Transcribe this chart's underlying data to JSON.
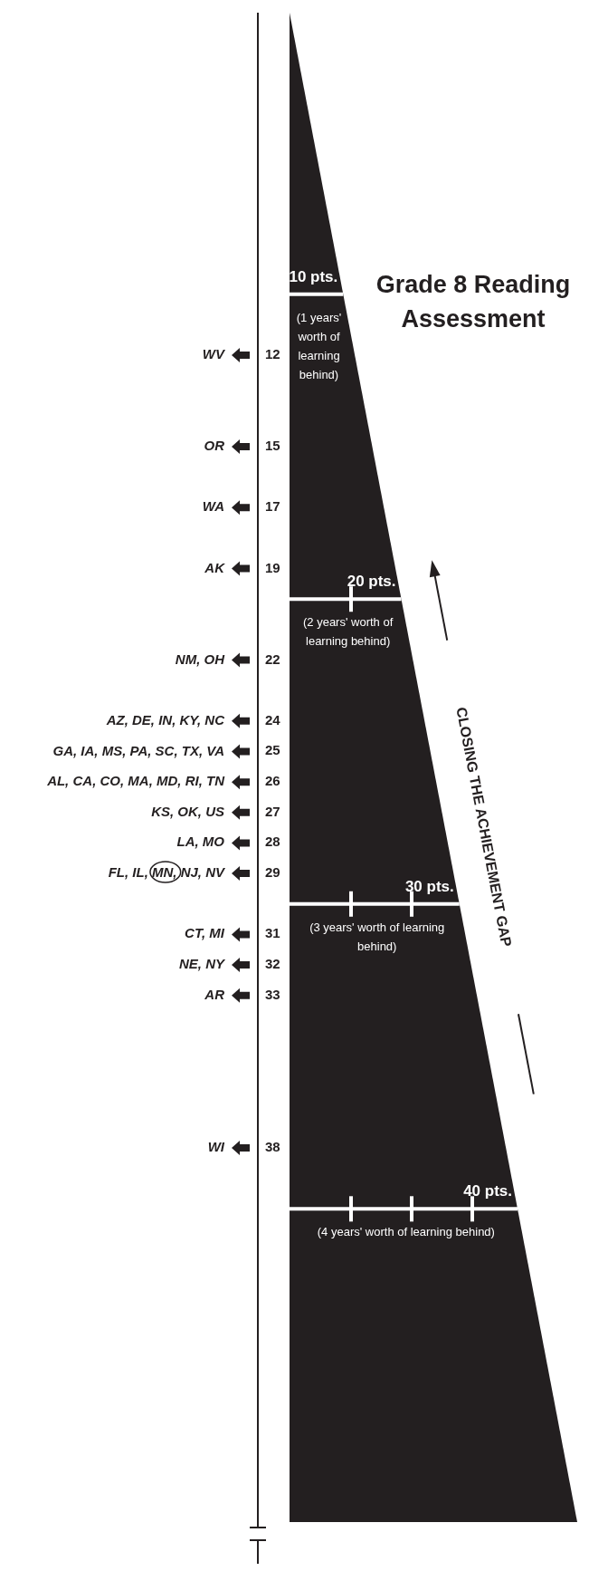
{
  "chart_data": {
    "type": "other",
    "title": "Grade 8 Reading Assessment",
    "categories": [
      "WV",
      "OR",
      "WA",
      "AK",
      "NM, OH",
      "AZ, DE, IN, KY, NC",
      "GA, IA, MS, PA, SC, TX, VA",
      "AL, CA, CO, MA, MD, RI, TN",
      "KS, OK, US",
      "LA, MO",
      "FL, IL, MN, NJ, NV",
      "CT, MI",
      "NE, NY",
      "AR",
      "WI"
    ],
    "values": [
      12,
      15,
      17,
      19,
      22,
      24,
      25,
      26,
      27,
      28,
      29,
      31,
      32,
      33,
      38
    ],
    "data_labels": true,
    "annotations": [
      "(1 years' worth of learning behind)",
      "(2 years' worth of learning behind)",
      "(3 years' worth of learning behind)",
      "(4 years' worth of learning behind)",
      "CLOSING THE ACHIEVEMENT GAP",
      "10 pts.",
      "20 pts.",
      "30 pts.",
      "40 pts."
    ]
  }
}
